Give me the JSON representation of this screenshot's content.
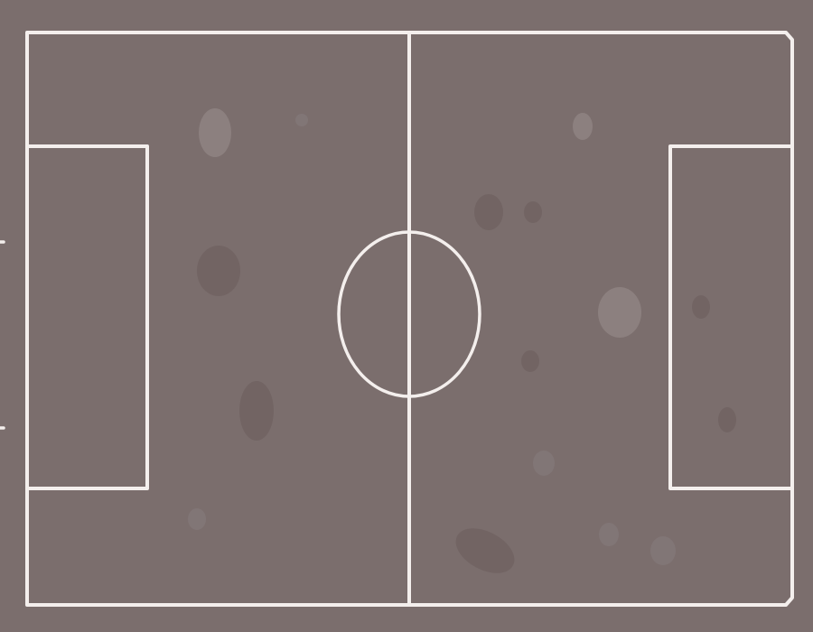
{
  "pitch": {
    "background_color": "#7b6e6d",
    "line_color": "#f4efed",
    "worn_light_color": "#8f8483",
    "worn_dark_color": "#6f6160"
  }
}
